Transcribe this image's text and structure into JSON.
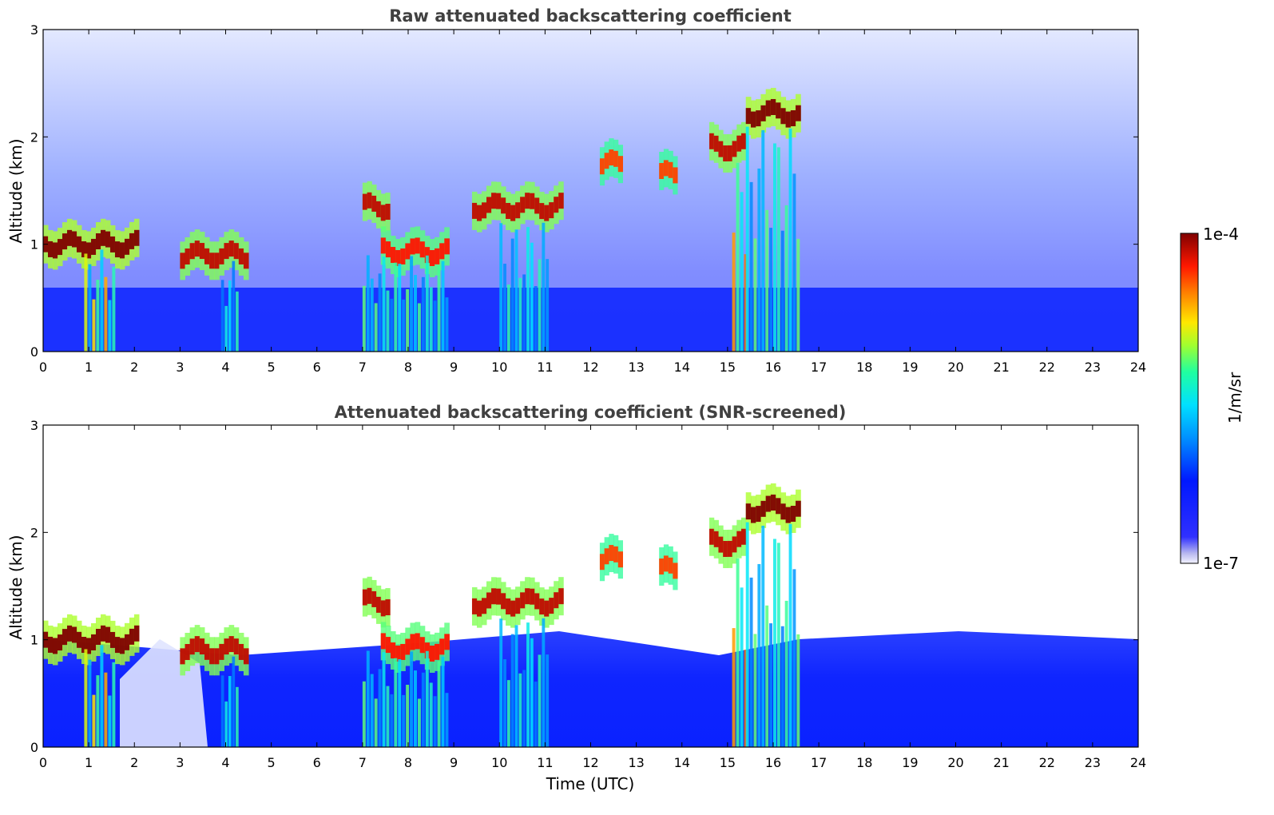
{
  "chart_data": [
    {
      "type": "heatmap",
      "title": "Raw attenuated backscattering coefficient",
      "xlabel": "",
      "ylabel": "Altitude (km)",
      "xlim": [
        0,
        24
      ],
      "ylim": [
        0,
        3
      ],
      "x_ticks": [
        "0",
        "1",
        "2",
        "3",
        "4",
        "5",
        "6",
        "7",
        "8",
        "9",
        "10",
        "11",
        "12",
        "13",
        "14",
        "15",
        "16",
        "17",
        "18",
        "19",
        "20",
        "21",
        "22",
        "23",
        "24"
      ],
      "y_ticks": [
        "0",
        "1",
        "2",
        "3"
      ],
      "features": [
        {
          "kind": "layer",
          "x": [
            0.0,
            2.1
          ],
          "y_center": 1.0,
          "peak": 1.0
        },
        {
          "kind": "column",
          "x": [
            0.9,
            1.6
          ],
          "y_top": 0.95,
          "peak": 0.75
        },
        {
          "kind": "layer",
          "x": [
            3.0,
            4.5
          ],
          "y_center": 0.9,
          "peak": 0.95
        },
        {
          "kind": "column",
          "x": [
            3.9,
            4.3
          ],
          "y_top": 0.85,
          "peak": 0.5
        },
        {
          "kind": "layer",
          "x": [
            7.0,
            7.6
          ],
          "y_center": 1.35,
          "peak": 0.95
        },
        {
          "kind": "layer",
          "x": [
            7.4,
            8.9
          ],
          "y_center": 0.93,
          "peak": 0.9
        },
        {
          "kind": "column",
          "x": [
            7.0,
            8.9
          ],
          "y_top": 0.9,
          "peak": 0.55
        },
        {
          "kind": "layer",
          "x": [
            9.4,
            11.4
          ],
          "y_center": 1.35,
          "peak": 0.95
        },
        {
          "kind": "column",
          "x": [
            10.0,
            11.1
          ],
          "y_top": 1.2,
          "peak": 0.5
        },
        {
          "kind": "layer",
          "x": [
            12.2,
            12.7
          ],
          "y_center": 1.75,
          "peak": 0.85
        },
        {
          "kind": "layer",
          "x": [
            13.5,
            13.9
          ],
          "y_center": 1.65,
          "peak": 0.85
        },
        {
          "kind": "layer",
          "x": [
            14.6,
            15.4
          ],
          "y_center": 1.9,
          "peak": 0.95
        },
        {
          "kind": "column",
          "x": [
            15.1,
            15.45
          ],
          "y_top": 1.8,
          "peak": 0.8
        },
        {
          "kind": "layer",
          "x": [
            15.4,
            16.6
          ],
          "y_center": 2.22,
          "peak": 1.0
        },
        {
          "kind": "column",
          "x": [
            15.4,
            16.6
          ],
          "y_top": 2.1,
          "peak": 0.55
        }
      ]
    },
    {
      "type": "heatmap",
      "title": "Attenuated backscattering coefficient (SNR-screened)",
      "xlabel": "Time (UTC)",
      "ylabel": "Altitude (km)",
      "xlim": [
        0,
        24
      ],
      "ylim": [
        0,
        3
      ],
      "x_ticks": [
        "0",
        "1",
        "2",
        "3",
        "4",
        "5",
        "6",
        "7",
        "8",
        "9",
        "10",
        "11",
        "12",
        "13",
        "14",
        "15",
        "16",
        "17",
        "18",
        "19",
        "20",
        "21",
        "22",
        "23",
        "24"
      ],
      "y_ticks": [
        "0",
        "1",
        "2",
        "3"
      ],
      "features": [
        {
          "kind": "layer",
          "x": [
            0.0,
            2.1
          ],
          "y_center": 1.0,
          "peak": 1.0
        },
        {
          "kind": "column",
          "x": [
            0.9,
            1.6
          ],
          "y_top": 0.95,
          "peak": 0.75
        },
        {
          "kind": "layer",
          "x": [
            3.0,
            4.5
          ],
          "y_center": 0.9,
          "peak": 0.95
        },
        {
          "kind": "column",
          "x": [
            3.9,
            4.3
          ],
          "y_top": 0.85,
          "peak": 0.5
        },
        {
          "kind": "layer",
          "x": [
            7.0,
            7.6
          ],
          "y_center": 1.35,
          "peak": 0.95
        },
        {
          "kind": "layer",
          "x": [
            7.4,
            8.9
          ],
          "y_center": 0.93,
          "peak": 0.9
        },
        {
          "kind": "column",
          "x": [
            7.0,
            8.9
          ],
          "y_top": 0.9,
          "peak": 0.55
        },
        {
          "kind": "layer",
          "x": [
            9.4,
            11.4
          ],
          "y_center": 1.35,
          "peak": 0.95
        },
        {
          "kind": "column",
          "x": [
            10.0,
            11.1
          ],
          "y_top": 1.2,
          "peak": 0.5
        },
        {
          "kind": "layer",
          "x": [
            12.2,
            12.7
          ],
          "y_center": 1.75,
          "peak": 0.85
        },
        {
          "kind": "layer",
          "x": [
            13.5,
            13.9
          ],
          "y_center": 1.65,
          "peak": 0.85
        },
        {
          "kind": "layer",
          "x": [
            14.6,
            15.4
          ],
          "y_center": 1.9,
          "peak": 0.95
        },
        {
          "kind": "column",
          "x": [
            15.1,
            15.45
          ],
          "y_top": 1.8,
          "peak": 0.8
        },
        {
          "kind": "layer",
          "x": [
            15.4,
            16.6
          ],
          "y_center": 2.22,
          "peak": 1.0
        },
        {
          "kind": "column",
          "x": [
            15.4,
            16.6
          ],
          "y_top": 2.1,
          "peak": 0.55
        }
      ]
    }
  ],
  "colorbar": {
    "label": "1/m/sr",
    "max_label": "1e-4",
    "min_label": "1e-7",
    "colormap": "jet",
    "colors": [
      "#f0f0ff",
      "#0018ff",
      "#00c8ff",
      "#e8f000",
      "#ff2a00",
      "#800000"
    ]
  }
}
